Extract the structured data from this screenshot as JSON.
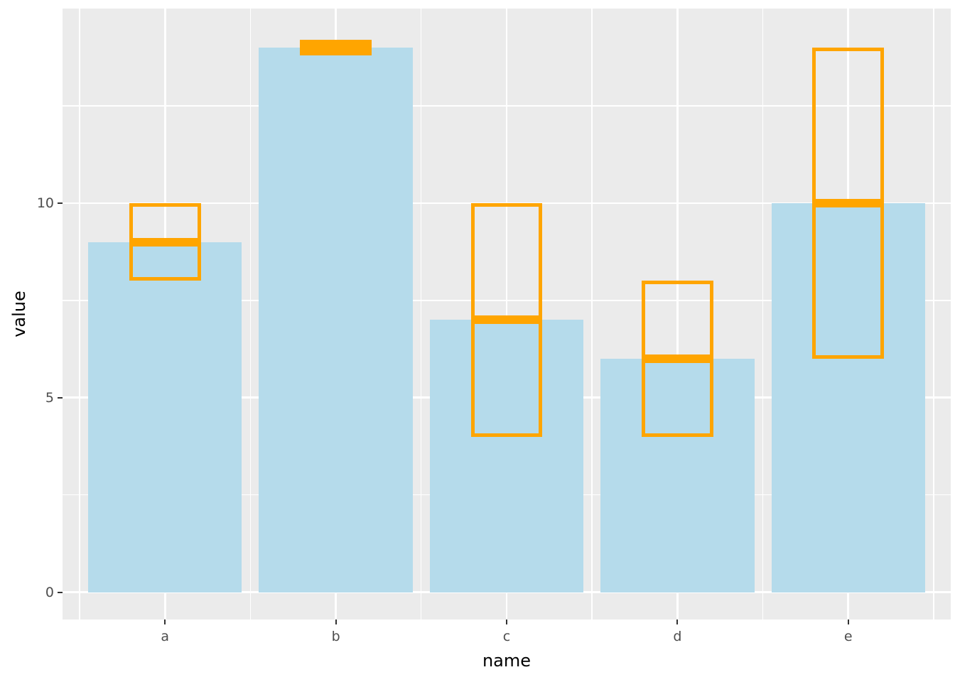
{
  "chart_data": {
    "type": "bar",
    "title": "",
    "xlabel": "name",
    "ylabel": "value",
    "categories": [
      "a",
      "b",
      "c",
      "d",
      "e"
    ],
    "series": [
      {
        "name": "value",
        "type": "bar",
        "values": [
          9,
          14,
          7,
          6,
          10
        ]
      },
      {
        "name": "crossbar",
        "type": "crossbar",
        "mid": [
          9,
          14,
          7,
          6,
          10
        ],
        "ymin": [
          8,
          14,
          4,
          4,
          6
        ],
        "ymax": [
          10,
          14,
          10,
          8,
          14
        ]
      }
    ],
    "y_ticks": [
      0,
      5,
      10
    ],
    "y_minor_gridlines": [
      2.5,
      7.5,
      12.5
    ],
    "ylim": [
      -0.7,
      15.0
    ],
    "grid": true,
    "legend": false,
    "colors": {
      "bar": "#B5DBEB",
      "crossbar": "#FFA500",
      "panel": "#EBEBEB",
      "grid": "#FFFFFF",
      "axis_text": "#4D4D4D",
      "axis_title": "#000000",
      "tick_mark": "#333333"
    }
  }
}
